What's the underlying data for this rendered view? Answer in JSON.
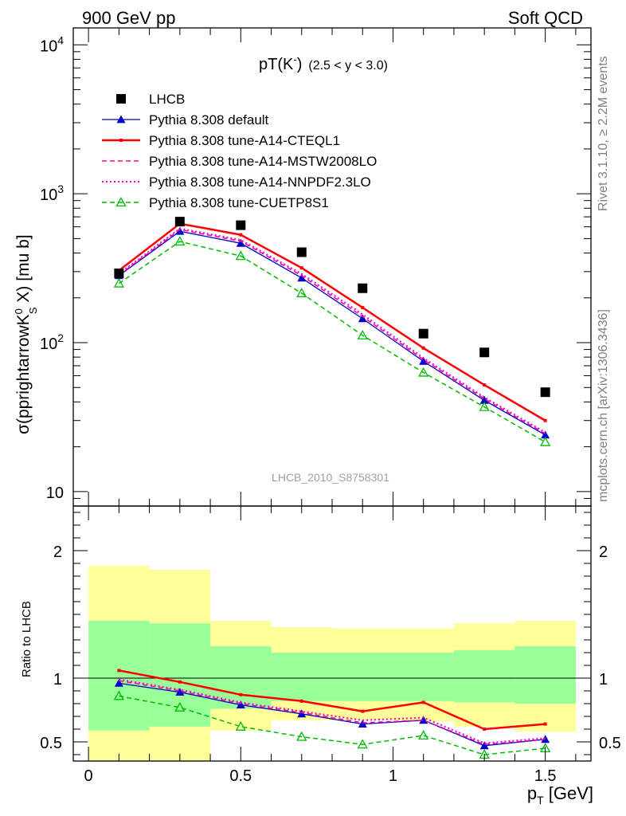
{
  "header": {
    "left": "900 GeV pp",
    "right": "Soft QCD"
  },
  "side_labels": {
    "rivet": "Rivet 3.1.10, ≥ 2.2M events",
    "mcplots": "mcplots.cern.ch [arXiv:1306.3436]"
  },
  "chart_data": [
    {
      "type": "scatter",
      "title": "pT(Kˉ) (2.5 < y < 3.0)",
      "title_parts": {
        "main": "pT(K",
        "sup": "-",
        "close": ")",
        "range": "(2.5 < y < 3.0)"
      },
      "watermark": "LHCB_2010_S8758301",
      "ylabel": "σ(pprightarrowK",
      "ylabel_parts": {
        "sup": "0",
        "sub": "S",
        "tail": " X) [mu b]"
      },
      "yscale": "log",
      "ylim": [
        8,
        13000
      ],
      "xlim": [
        -0.05,
        1.65
      ],
      "yticks": [
        {
          "v": 10,
          "label": "10"
        },
        {
          "v": 100,
          "label": "10",
          "exp": "2"
        },
        {
          "v": 1000,
          "label": "10",
          "exp": "3"
        },
        {
          "v": 10000,
          "label": "10",
          "exp": "4"
        }
      ],
      "legend_position": "top-left",
      "x": [
        0.1,
        0.3,
        0.5,
        0.7,
        0.9,
        1.1,
        1.3,
        1.5
      ],
      "series": [
        {
          "name": "LHCB",
          "color": "#000000",
          "style": "marker-square",
          "values": [
            292,
            650,
            615,
            405,
            232,
            115,
            86,
            46.5
          ]
        },
        {
          "name": "Pythia 8.308 default",
          "color": "#0000cc",
          "style": "solid-triangle",
          "values": [
            282,
            560,
            465,
            272,
            145,
            75,
            41,
            24
          ]
        },
        {
          "name": "Pythia 8.308 tune-A14-CTEQL1",
          "color": "#ff0000",
          "style": "solid-thick",
          "values": [
            305,
            630,
            530,
            318,
            172,
            92,
            52,
            30
          ]
        },
        {
          "name": "Pythia 8.308 tune-A14-MSTW2008LO",
          "color": "#ff0099",
          "style": "dashed",
          "values": [
            285,
            575,
            480,
            282,
            150,
            77,
            42,
            24.5
          ]
        },
        {
          "name": "Pythia 8.308 tune-A14-NNPDF2.3LO",
          "color": "#ff00cc",
          "style": "dotted",
          "values": [
            290,
            585,
            490,
            290,
            155,
            79,
            43,
            25
          ]
        },
        {
          "name": "Pythia 8.308 tune-CUETP8S1",
          "color": "#00bb00",
          "style": "dashed-open-triangle",
          "values": [
            250,
            478,
            382,
            215,
            112,
            63,
            37,
            21.5
          ]
        }
      ]
    },
    {
      "type": "line",
      "ylabel": "Ratio to LHCB",
      "xlabel": "p",
      "xlabel_sub": "T",
      "xlabel_unit": " [GeV]",
      "ylim": [
        0.35,
        2.35
      ],
      "xlim": [
        -0.05,
        1.65
      ],
      "yticks": [
        {
          "v": 0.5,
          "label": "0.5"
        },
        {
          "v": 1,
          "label": "1"
        },
        {
          "v": 2,
          "label": "2"
        }
      ],
      "xticks": [
        {
          "v": 0,
          "label": "0"
        },
        {
          "v": 0.5,
          "label": "0.5"
        },
        {
          "v": 1,
          "label": "1"
        },
        {
          "v": 1.5,
          "label": "1.5"
        }
      ],
      "bands": [
        {
          "x0": 0.0,
          "x1": 0.2,
          "yellow": [
            0.34,
            1.88
          ],
          "green": [
            0.59,
            1.45
          ]
        },
        {
          "x0": 0.2,
          "x1": 0.4,
          "yellow": [
            0.34,
            1.85
          ],
          "green": [
            0.62,
            1.43
          ]
        },
        {
          "x0": 0.4,
          "x1": 0.6,
          "yellow": [
            0.59,
            1.45
          ],
          "green": [
            0.76,
            1.25
          ]
        },
        {
          "x0": 0.6,
          "x1": 0.8,
          "yellow": [
            0.67,
            1.4
          ],
          "green": [
            0.82,
            1.2
          ]
        },
        {
          "x0": 0.8,
          "x1": 1.0,
          "yellow": [
            0.67,
            1.39
          ],
          "green": [
            0.82,
            1.2
          ]
        },
        {
          "x0": 1.0,
          "x1": 1.2,
          "yellow": [
            0.66,
            1.39
          ],
          "green": [
            0.82,
            1.2
          ]
        },
        {
          "x0": 1.2,
          "x1": 1.4,
          "yellow": [
            0.62,
            1.43
          ],
          "green": [
            0.81,
            1.22
          ]
        },
        {
          "x0": 1.4,
          "x1": 1.6,
          "yellow": [
            0.58,
            1.45
          ],
          "green": [
            0.8,
            1.25
          ]
        }
      ],
      "x": [
        0.1,
        0.3,
        0.5,
        0.7,
        0.9,
        1.1,
        1.3,
        1.5
      ],
      "series": [
        {
          "name": "Pythia 8.308 default",
          "color": "#0000cc",
          "style": "solid-triangle",
          "values": [
            0.96,
            0.89,
            0.79,
            0.72,
            0.64,
            0.67,
            0.47,
            0.52
          ]
        },
        {
          "name": "Pythia 8.308 tune-A14-CTEQL1",
          "color": "#ff0000",
          "style": "solid-thick",
          "values": [
            1.06,
            0.97,
            0.87,
            0.82,
            0.74,
            0.81,
            0.6,
            0.64
          ]
        },
        {
          "name": "Pythia 8.308 tune-A14-MSTW2008LO",
          "color": "#ff0099",
          "style": "dashed",
          "values": [
            0.98,
            0.9,
            0.8,
            0.73,
            0.65,
            0.67,
            0.48,
            0.52
          ]
        },
        {
          "name": "Pythia 8.308 tune-A14-NNPDF2.3LO",
          "color": "#ff00cc",
          "style": "dotted",
          "values": [
            0.99,
            0.91,
            0.81,
            0.74,
            0.67,
            0.69,
            0.49,
            0.53
          ]
        },
        {
          "name": "Pythia 8.308 tune-CUETP8S1",
          "color": "#00bb00",
          "style": "dashed-open-triangle",
          "values": [
            0.86,
            0.77,
            0.62,
            0.54,
            0.48,
            0.55,
            0.4,
            0.45
          ]
        }
      ]
    }
  ]
}
